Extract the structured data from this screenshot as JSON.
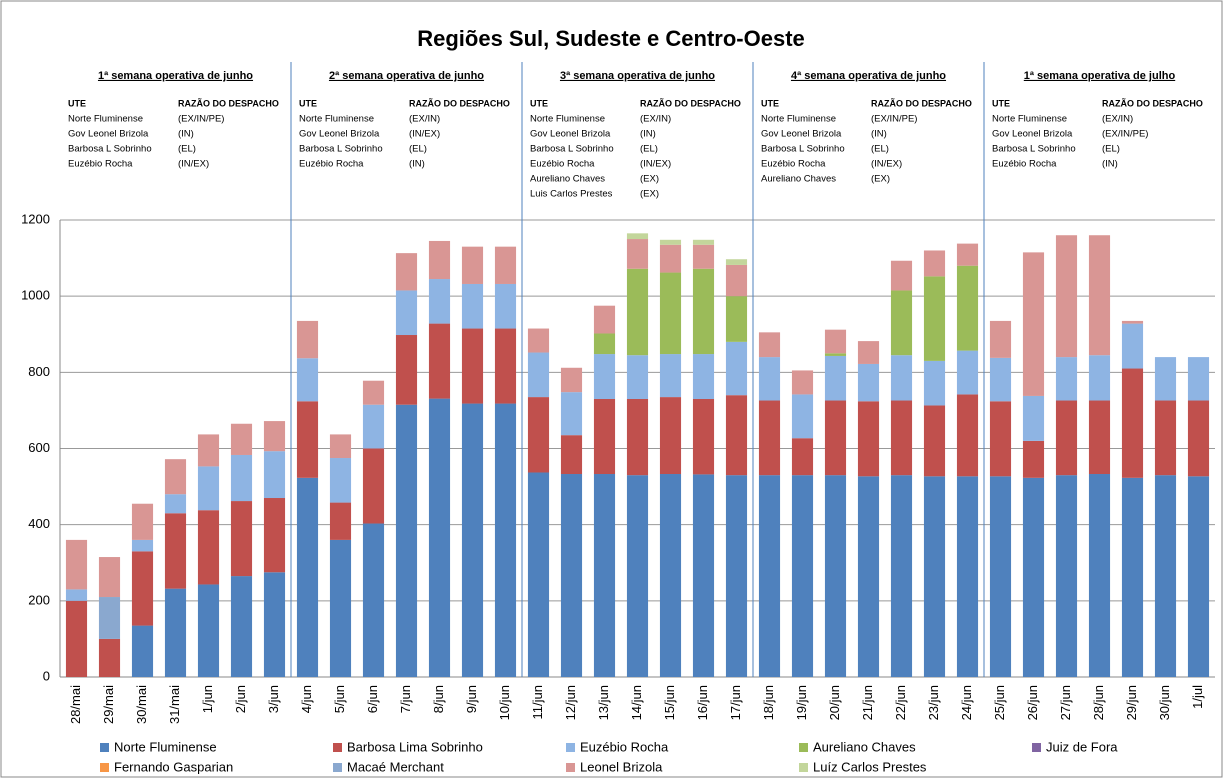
{
  "chart_data": {
    "type": "stacked_bar",
    "title": "Regiões Sul, Sudeste e Centro-Oeste",
    "categories": [
      "28/mai",
      "29/mai",
      "30/mai",
      "31/mai",
      "1/jun",
      "2/jun",
      "3/jun",
      "4/jun",
      "5/jun",
      "6/jun",
      "7/jun",
      "8/jun",
      "9/jun",
      "10/jun",
      "11/jun",
      "12/jun",
      "13/jun",
      "14/jun",
      "15/jun",
      "16/jun",
      "17/jun",
      "18/jun",
      "19/jun",
      "20/jun",
      "21/jun",
      "22/jun",
      "23/jun",
      "24/jun",
      "25/jun",
      "26/jun",
      "27/jun",
      "28/jun",
      "29/jun",
      "30/jun",
      "1/jul"
    ],
    "series": [
      {
        "name": "Norte Fluminense",
        "color": "#4f81bd",
        "values": [
          null,
          null,
          135,
          232,
          243,
          265,
          275,
          523,
          360,
          403,
          715,
          731,
          718,
          718,
          537,
          533,
          533,
          530,
          533,
          532,
          530,
          530,
          530,
          530,
          527,
          530,
          527,
          527,
          527,
          523,
          530,
          533,
          523,
          530,
          527
        ]
      },
      {
        "name": "Barbosa Lima Sobrinho",
        "color": "#c0504d",
        "values": [
          200,
          100,
          195,
          198,
          195,
          197,
          195,
          201,
          98,
          197,
          183,
          197,
          197,
          197,
          198,
          102,
          197,
          200,
          202,
          198,
          210,
          196,
          97,
          196,
          197,
          196,
          186,
          215,
          197,
          97,
          196,
          193,
          287,
          196,
          199
        ]
      },
      {
        "name": "Euzébio Rocha",
        "color": "#8eb4e3",
        "values": [
          30,
          null,
          30,
          50,
          115,
          121,
          123,
          113,
          117,
          115,
          117,
          117,
          117,
          117,
          117,
          113,
          118,
          115,
          113,
          118,
          140,
          114,
          115,
          117,
          98,
          119,
          117,
          115,
          114,
          118,
          114,
          119,
          118,
          114,
          114
        ]
      },
      {
        "name": "Aureliano Chaves",
        "color": "#9bbb59",
        "values": [
          null,
          null,
          null,
          null,
          null,
          null,
          null,
          null,
          null,
          null,
          null,
          null,
          null,
          null,
          null,
          null,
          54,
          227,
          214,
          224,
          120,
          null,
          null,
          7,
          null,
          170,
          222,
          223,
          null,
          null,
          null,
          null,
          null,
          null,
          null
        ]
      },
      {
        "name": "Juiz de Fora",
        "color": "#8064a2",
        "values": [
          null,
          null,
          null,
          null,
          null,
          null,
          null,
          null,
          null,
          null,
          null,
          null,
          null,
          null,
          null,
          null,
          null,
          null,
          null,
          null,
          null,
          null,
          null,
          null,
          null,
          null,
          null,
          null,
          null,
          null,
          null,
          null,
          null,
          null,
          null
        ]
      },
      {
        "name": "Fernando Gasparian",
        "color": "#f79646",
        "values": [
          null,
          null,
          null,
          null,
          null,
          null,
          null,
          null,
          null,
          null,
          null,
          null,
          null,
          null,
          null,
          null,
          null,
          null,
          null,
          null,
          null,
          null,
          null,
          null,
          null,
          null,
          null,
          null,
          null,
          null,
          null,
          null,
          null,
          null,
          null
        ]
      },
      {
        "name": "Macaé Merchant",
        "color": "#8aa8cf",
        "values": [
          null,
          110,
          null,
          null,
          null,
          null,
          null,
          null,
          null,
          null,
          null,
          null,
          null,
          null,
          null,
          null,
          null,
          null,
          null,
          null,
          null,
          null,
          null,
          null,
          null,
          null,
          null,
          null,
          null,
          null,
          null,
          null,
          null,
          null,
          null
        ]
      },
      {
        "name": "Leonel Brizola",
        "color": "#d99694",
        "values": [
          130,
          105,
          95,
          92,
          84,
          82,
          79,
          98,
          62,
          63,
          98,
          100,
          98,
          98,
          63,
          64,
          73,
          78,
          73,
          63,
          82,
          65,
          63,
          62,
          60,
          78,
          68,
          58,
          97,
          377,
          320,
          315,
          7,
          null,
          null
        ]
      },
      {
        "name": "Luíz Carlos Prestes",
        "color": "#c3d69b",
        "values": [
          null,
          null,
          null,
          null,
          null,
          null,
          null,
          null,
          null,
          null,
          null,
          null,
          null,
          null,
          null,
          null,
          null,
          15,
          13,
          13,
          15,
          null,
          null,
          null,
          null,
          null,
          null,
          null,
          null,
          null,
          null,
          null,
          null,
          null,
          null
        ]
      }
    ],
    "ylim": [
      0,
      1200
    ],
    "yticks": [
      0,
      200,
      400,
      600,
      800,
      1000,
      1200
    ],
    "grid": true,
    "legend": "bottom",
    "weeks": [
      {
        "title": "1ª semana operativa de junho",
        "header": [
          "UTE",
          "RAZÃO DO DESPACHO"
        ],
        "rows": [
          [
            "Norte Fluminense",
            "(EX/IN/PE)"
          ],
          [
            "Gov Leonel Brizola",
            "(IN)"
          ],
          [
            "Barbosa L Sobrinho",
            "(EL)"
          ],
          [
            "Euzébio Rocha",
            "(IN/EX)"
          ]
        ]
      },
      {
        "title": "2ª semana operativa de junho",
        "header": [
          "UTE",
          "RAZÃO DO DESPACHO"
        ],
        "rows": [
          [
            "Norte Fluminense",
            "(EX/IN)"
          ],
          [
            "Gov Leonel Brizola",
            "(IN/EX)"
          ],
          [
            "Barbosa L Sobrinho",
            "(EL)"
          ],
          [
            "Euzébio Rocha",
            "(IN)"
          ]
        ]
      },
      {
        "title": "3ª semana operativa de junho",
        "header": [
          "UTE",
          "RAZÃO DO DESPACHO"
        ],
        "rows": [
          [
            "Norte Fluminense",
            "(EX/IN)"
          ],
          [
            "Gov Leonel Brizola",
            "(IN)"
          ],
          [
            "Barbosa L Sobrinho",
            "(EL)"
          ],
          [
            "Euzébio Rocha",
            "(IN/EX)"
          ],
          [
            "Aureliano Chaves",
            "(EX)"
          ],
          [
            "Luis Carlos Prestes",
            "(EX)"
          ]
        ]
      },
      {
        "title": "4ª semana operativa de junho",
        "header": [
          "UTE",
          "RAZÃO DO DESPACHO"
        ],
        "rows": [
          [
            "Norte Fluminense",
            "(EX/IN/PE)"
          ],
          [
            "Gov Leonel Brizola",
            "(IN)"
          ],
          [
            "Barbosa L Sobrinho",
            "(EL)"
          ],
          [
            "Euzébio Rocha",
            "(IN/EX)"
          ],
          [
            "Aureliano Chaves",
            "(EX)"
          ]
        ]
      },
      {
        "title": "1ª semana operativa de julho",
        "header": [
          "UTE",
          "RAZÃO DO DESPACHO"
        ],
        "rows": [
          [
            "Norte Fluminense",
            "(EX/IN)"
          ],
          [
            "Gov Leonel Brizola",
            "(EX/IN/PE)"
          ],
          [
            "Barbosa L Sobrinho",
            "(EL)"
          ],
          [
            "Euzébio Rocha",
            "(IN)"
          ]
        ]
      }
    ]
  }
}
